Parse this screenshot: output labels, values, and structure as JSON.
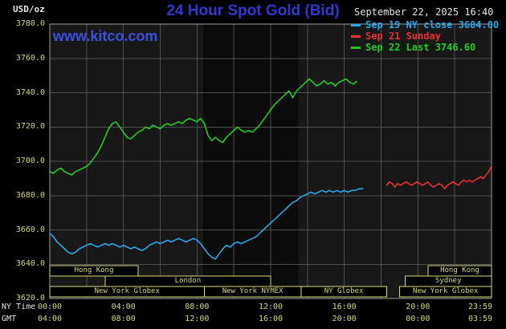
{
  "colors": {
    "background": "#000000",
    "plot_background": "#181818",
    "nymex_band": "#0b0b0b",
    "grid": "#4e4e4e",
    "plot_border": "#9a9a9a",
    "title_blue": "#3238cf",
    "link_blue": "#3a4fe0",
    "axis_yellow": "#d8d87c",
    "text_white": "#e6e6e6"
  },
  "header": {
    "units": "USD/oz",
    "title": "24 Hour Spot Gold (Bid)",
    "datetime": "September 22, 2025 16:40",
    "watermark": "www.kitco.com"
  },
  "axes": {
    "ny_label": "NY Time",
    "gmt_label": "GMT",
    "y_ticks": [
      "3780.0",
      "3760.0",
      "3740.0",
      "3720.0",
      "3700.0",
      "3680.0",
      "3660.0",
      "3640.0",
      "3620.0"
    ],
    "ny_ticks": [
      {
        "h": 0,
        "label": "00:00"
      },
      {
        "h": 4,
        "label": "04:00"
      },
      {
        "h": 8,
        "label": "08:00"
      },
      {
        "h": 12,
        "label": "12:00"
      },
      {
        "h": 16,
        "label": "16:00"
      },
      {
        "h": 20,
        "label": "20:00"
      },
      {
        "h": 23.98,
        "label": "23:59"
      }
    ],
    "gmt_ticks": [
      {
        "h": 0,
        "label": "04:00"
      },
      {
        "h": 4,
        "label": "08:00"
      },
      {
        "h": 8,
        "label": "12:00"
      },
      {
        "h": 12,
        "label": "16:00"
      },
      {
        "h": 16,
        "label": "20:00"
      },
      {
        "h": 20,
        "label": "00:00"
      },
      {
        "h": 23.98,
        "label": "03:59"
      }
    ]
  },
  "sessions": [
    {
      "label": "Hong Kong",
      "row": 0,
      "start": 0,
      "end": 4.8
    },
    {
      "label": "Hong Kong",
      "row": 0,
      "start": 20.55,
      "end": 24
    },
    {
      "label": "London",
      "row": 1,
      "start": 3.0,
      "end": 12.0
    },
    {
      "label": "Sydney",
      "row": 1,
      "start": 19.3,
      "end": 24
    },
    {
      "label": "New York Globex",
      "row": 2,
      "start": 0,
      "end": 8.4
    },
    {
      "label": "New York NYMEX",
      "row": 2,
      "start": 8.4,
      "end": 13.65
    },
    {
      "label": "NY Globex",
      "row": 2,
      "start": 13.65,
      "end": 18.3
    },
    {
      "label": "New York Globex",
      "row": 2,
      "start": 19.0,
      "end": 24
    }
  ],
  "chart_data": {
    "type": "line",
    "title": "24 Hour Spot Gold (Bid)",
    "ylabel": "USD/oz",
    "ylim": [
      3620,
      3780
    ],
    "x_hours_range": [
      0,
      24
    ],
    "grid": {
      "y_step": 20,
      "x_step_hours": 2
    },
    "nymex_band_hours": [
      8.33,
      13.5
    ],
    "series": [
      {
        "name": "sep-19",
        "legend": "Sep 19 NY close 3684.00",
        "close": 3684.0,
        "color": "#29a8e8",
        "points": [
          [
            0,
            3658
          ],
          [
            0.2,
            3656
          ],
          [
            0.4,
            3653
          ],
          [
            0.6,
            3651
          ],
          [
            0.8,
            3649
          ],
          [
            1.0,
            3647
          ],
          [
            1.2,
            3646
          ],
          [
            1.4,
            3647
          ],
          [
            1.6,
            3649
          ],
          [
            1.8,
            3650
          ],
          [
            2.0,
            3651
          ],
          [
            2.2,
            3652
          ],
          [
            2.4,
            3651
          ],
          [
            2.6,
            3650
          ],
          [
            2.8,
            3651
          ],
          [
            3.0,
            3652
          ],
          [
            3.2,
            3651
          ],
          [
            3.4,
            3652
          ],
          [
            3.6,
            3651
          ],
          [
            3.8,
            3650
          ],
          [
            4.0,
            3651
          ],
          [
            4.2,
            3650
          ],
          [
            4.4,
            3649
          ],
          [
            4.6,
            3650
          ],
          [
            4.8,
            3649
          ],
          [
            5.0,
            3648
          ],
          [
            5.2,
            3649
          ],
          [
            5.4,
            3651
          ],
          [
            5.6,
            3652
          ],
          [
            5.8,
            3653
          ],
          [
            6.0,
            3652
          ],
          [
            6.2,
            3653
          ],
          [
            6.4,
            3654
          ],
          [
            6.6,
            3653
          ],
          [
            6.8,
            3654
          ],
          [
            7.0,
            3655
          ],
          [
            7.2,
            3654
          ],
          [
            7.4,
            3653
          ],
          [
            7.6,
            3654
          ],
          [
            7.8,
            3655
          ],
          [
            8.0,
            3654
          ],
          [
            8.2,
            3652
          ],
          [
            8.4,
            3649
          ],
          [
            8.6,
            3646
          ],
          [
            8.8,
            3644
          ],
          [
            9.0,
            3643
          ],
          [
            9.2,
            3646
          ],
          [
            9.4,
            3649
          ],
          [
            9.6,
            3651
          ],
          [
            9.8,
            3650
          ],
          [
            10.0,
            3652
          ],
          [
            10.2,
            3653
          ],
          [
            10.4,
            3652
          ],
          [
            10.6,
            3653
          ],
          [
            10.8,
            3654
          ],
          [
            11.0,
            3655
          ],
          [
            11.2,
            3656
          ],
          [
            11.4,
            3658
          ],
          [
            11.6,
            3660
          ],
          [
            11.8,
            3662
          ],
          [
            12.0,
            3664
          ],
          [
            12.2,
            3666
          ],
          [
            12.4,
            3668
          ],
          [
            12.6,
            3670
          ],
          [
            12.8,
            3672
          ],
          [
            13.0,
            3674
          ],
          [
            13.2,
            3676
          ],
          [
            13.4,
            3677
          ],
          [
            13.6,
            3679
          ],
          [
            13.8,
            3680
          ],
          [
            14.0,
            3681
          ],
          [
            14.2,
            3682
          ],
          [
            14.4,
            3681
          ],
          [
            14.6,
            3682
          ],
          [
            14.8,
            3683
          ],
          [
            15.0,
            3682
          ],
          [
            15.2,
            3683
          ],
          [
            15.4,
            3682
          ],
          [
            15.6,
            3683
          ],
          [
            15.8,
            3682
          ],
          [
            16.0,
            3683
          ],
          [
            16.2,
            3682
          ],
          [
            16.4,
            3683
          ],
          [
            16.6,
            3683
          ],
          [
            16.8,
            3684
          ],
          [
            17.0,
            3684
          ]
        ]
      },
      {
        "name": "sep-21",
        "legend": "Sep 21 Sunday",
        "color": "#e83030",
        "points": [
          [
            18.3,
            3686
          ],
          [
            18.45,
            3688
          ],
          [
            18.6,
            3687
          ],
          [
            18.75,
            3685
          ],
          [
            18.9,
            3687
          ],
          [
            19.05,
            3686
          ],
          [
            19.2,
            3687
          ],
          [
            19.35,
            3688
          ],
          [
            19.5,
            3687
          ],
          [
            19.65,
            3686
          ],
          [
            19.8,
            3687
          ],
          [
            19.95,
            3688
          ],
          [
            20.1,
            3687
          ],
          [
            20.25,
            3686
          ],
          [
            20.4,
            3687
          ],
          [
            20.55,
            3688
          ],
          [
            20.7,
            3686
          ],
          [
            20.85,
            3685
          ],
          [
            21.0,
            3686
          ],
          [
            21.15,
            3687
          ],
          [
            21.3,
            3686
          ],
          [
            21.45,
            3684
          ],
          [
            21.6,
            3686
          ],
          [
            21.75,
            3687
          ],
          [
            21.9,
            3688
          ],
          [
            22.05,
            3687
          ],
          [
            22.2,
            3686
          ],
          [
            22.35,
            3688
          ],
          [
            22.5,
            3689
          ],
          [
            22.65,
            3688
          ],
          [
            22.8,
            3689
          ],
          [
            22.95,
            3688
          ],
          [
            23.1,
            3689
          ],
          [
            23.25,
            3690
          ],
          [
            23.4,
            3691
          ],
          [
            23.55,
            3690
          ],
          [
            23.7,
            3692
          ],
          [
            23.85,
            3694
          ],
          [
            23.98,
            3697
          ]
        ]
      },
      {
        "name": "sep-22",
        "legend": "Sep 22 Last 3746.60",
        "last": 3746.6,
        "color": "#22cc22",
        "points": [
          [
            0,
            3694
          ],
          [
            0.2,
            3693
          ],
          [
            0.4,
            3695
          ],
          [
            0.6,
            3696
          ],
          [
            0.8,
            3694
          ],
          [
            1.0,
            3693
          ],
          [
            1.2,
            3692
          ],
          [
            1.4,
            3694
          ],
          [
            1.6,
            3695
          ],
          [
            1.8,
            3696
          ],
          [
            2.0,
            3697
          ],
          [
            2.2,
            3699
          ],
          [
            2.4,
            3702
          ],
          [
            2.6,
            3705
          ],
          [
            2.8,
            3709
          ],
          [
            3.0,
            3714
          ],
          [
            3.2,
            3719
          ],
          [
            3.4,
            3722
          ],
          [
            3.6,
            3723
          ],
          [
            3.8,
            3720
          ],
          [
            4.0,
            3717
          ],
          [
            4.2,
            3714
          ],
          [
            4.4,
            3713
          ],
          [
            4.6,
            3715
          ],
          [
            4.8,
            3717
          ],
          [
            5.0,
            3718
          ],
          [
            5.2,
            3720
          ],
          [
            5.4,
            3719
          ],
          [
            5.6,
            3721
          ],
          [
            5.8,
            3720
          ],
          [
            6.0,
            3719
          ],
          [
            6.2,
            3721
          ],
          [
            6.4,
            3722
          ],
          [
            6.6,
            3721
          ],
          [
            6.8,
            3722
          ],
          [
            7.0,
            3723
          ],
          [
            7.2,
            3722
          ],
          [
            7.4,
            3724
          ],
          [
            7.6,
            3725
          ],
          [
            7.8,
            3724
          ],
          [
            8.0,
            3723
          ],
          [
            8.2,
            3725
          ],
          [
            8.4,
            3722
          ],
          [
            8.6,
            3715
          ],
          [
            8.8,
            3712
          ],
          [
            9.0,
            3714
          ],
          [
            9.2,
            3712
          ],
          [
            9.4,
            3711
          ],
          [
            9.6,
            3714
          ],
          [
            9.8,
            3716
          ],
          [
            10.0,
            3718
          ],
          [
            10.2,
            3720
          ],
          [
            10.4,
            3718
          ],
          [
            10.6,
            3717
          ],
          [
            10.8,
            3718
          ],
          [
            11.0,
            3717
          ],
          [
            11.2,
            3719
          ],
          [
            11.4,
            3721
          ],
          [
            11.6,
            3724
          ],
          [
            11.8,
            3727
          ],
          [
            12.0,
            3730
          ],
          [
            12.2,
            3733
          ],
          [
            12.4,
            3735
          ],
          [
            12.6,
            3737
          ],
          [
            12.8,
            3739
          ],
          [
            13.0,
            3741
          ],
          [
            13.1,
            3739
          ],
          [
            13.2,
            3737
          ],
          [
            13.4,
            3741
          ],
          [
            13.6,
            3743
          ],
          [
            13.8,
            3745
          ],
          [
            14.0,
            3747
          ],
          [
            14.1,
            3748
          ],
          [
            14.3,
            3746
          ],
          [
            14.5,
            3744
          ],
          [
            14.7,
            3745
          ],
          [
            14.9,
            3747
          ],
          [
            15.1,
            3745
          ],
          [
            15.3,
            3746
          ],
          [
            15.5,
            3744
          ],
          [
            15.7,
            3746
          ],
          [
            15.9,
            3747
          ],
          [
            16.1,
            3748
          ],
          [
            16.3,
            3746
          ],
          [
            16.5,
            3745
          ],
          [
            16.67,
            3746.6
          ]
        ]
      }
    ]
  }
}
